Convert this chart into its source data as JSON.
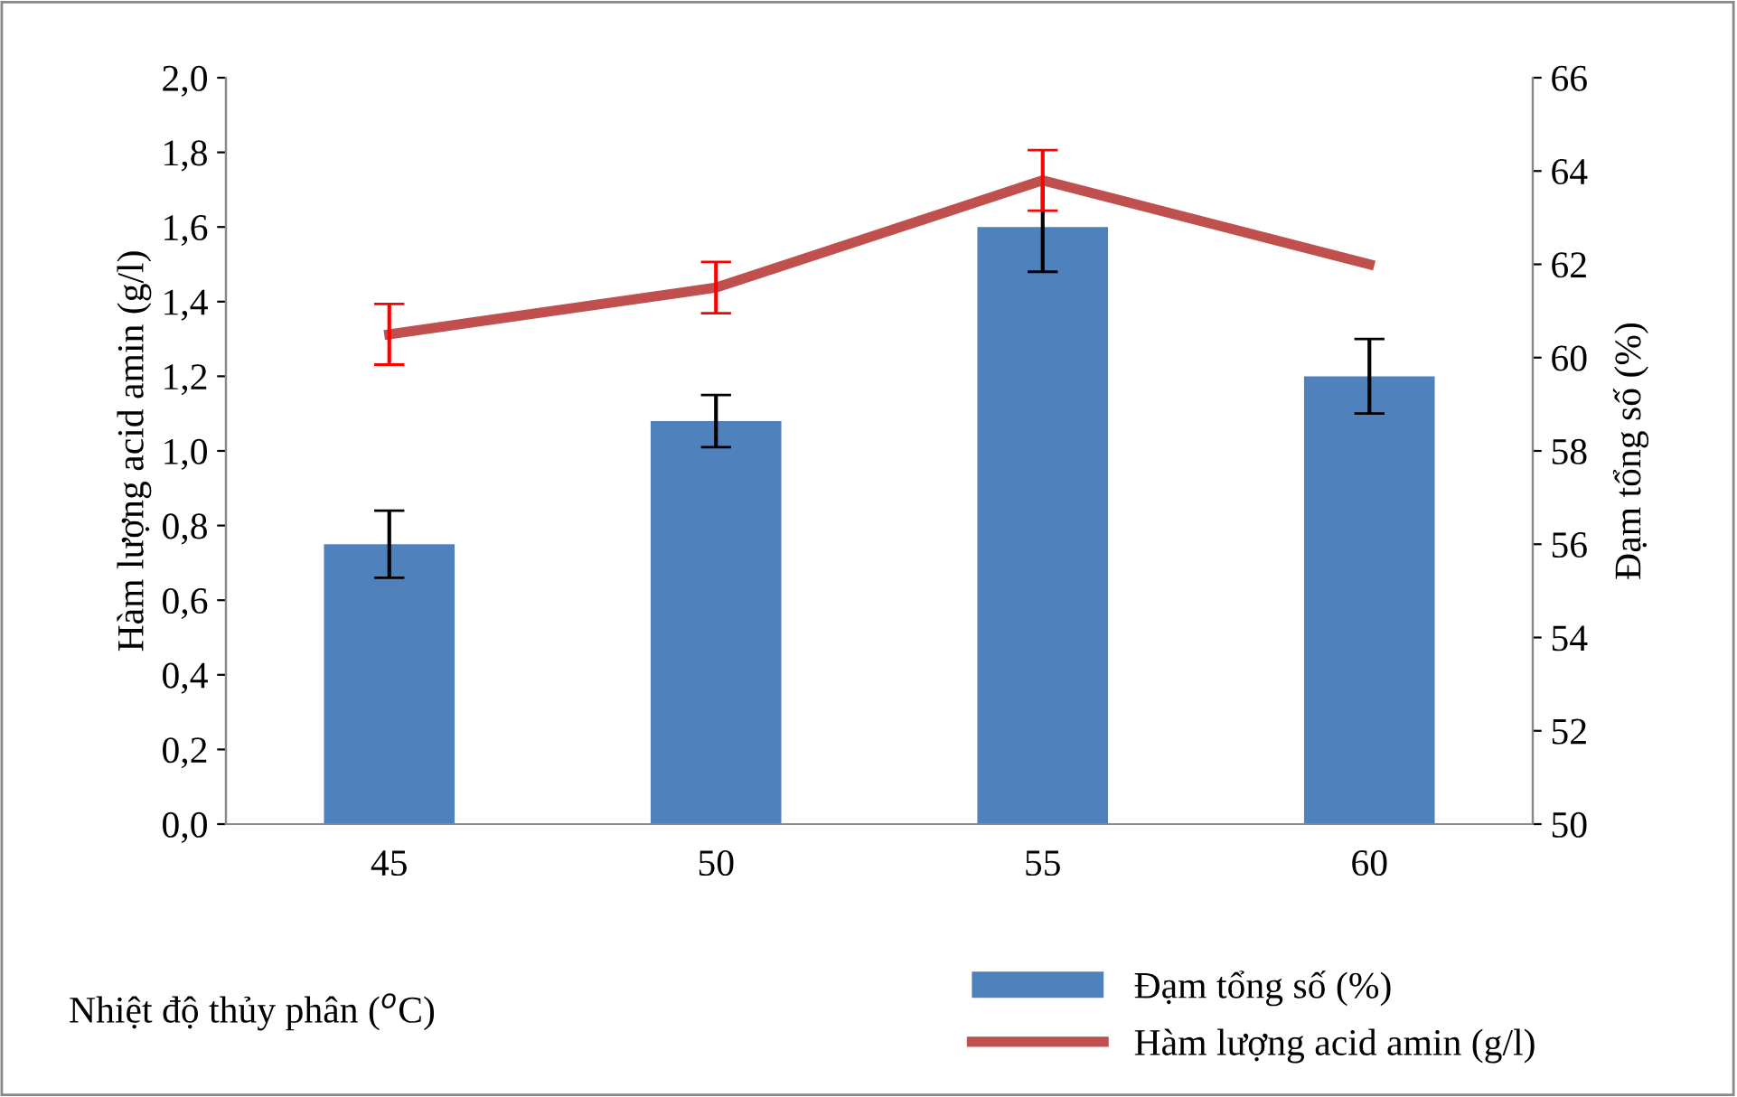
{
  "chart_data": {
    "type": "bar",
    "categories": [
      "45",
      "50",
      "55",
      "60"
    ],
    "xlabel": "Nhiệt độ thủy phân ($^{o}$C)",
    "ylabel": "Hàm lượng acid amin (g/l)",
    "y2label": "Đạm tổng số (%)",
    "series": [
      {
        "name": "Đạm tổng số (%)",
        "color": "#4f81bd",
        "values": [
          0.75,
          1.08,
          1.6,
          1.2
        ],
        "errors": [
          0.09,
          0.07,
          0.12,
          0.1
        ]
      },
      {
        "name": "Hàm lượng acid amin (g/l)",
        "type": "line",
        "axis": "y2",
        "color": "#c0504d",
        "values": [
          60.5,
          61.5,
          63.8,
          62.0
        ],
        "errors": [
          0.65,
          0.55,
          0.65,
          null
        ]
      }
    ],
    "ylim": [
      0,
      2
    ],
    "yticks": [
      {
        "value": 0,
        "label": "0,0"
      },
      {
        "value": 0.2,
        "label": "0,2"
      },
      {
        "value": 0.4,
        "label": "0,4"
      },
      {
        "value": 0.6,
        "label": "0,6"
      },
      {
        "value": 0.8,
        "label": "0,8"
      },
      {
        "value": 1.0,
        "label": "1,0"
      },
      {
        "value": 1.2,
        "label": "1,2"
      },
      {
        "value": 1.4,
        "label": "1,4"
      },
      {
        "value": 1.6,
        "label": "1,6"
      },
      {
        "value": 1.8,
        "label": "1,8"
      },
      {
        "value": 2.0,
        "label": "2,0"
      }
    ],
    "y2lim": [
      50,
      66
    ],
    "y2ticks": [
      50,
      52,
      54,
      56,
      58,
      60,
      62,
      64,
      66
    ],
    "grid": false,
    "legend": "bottom",
    "marker": "none"
  }
}
